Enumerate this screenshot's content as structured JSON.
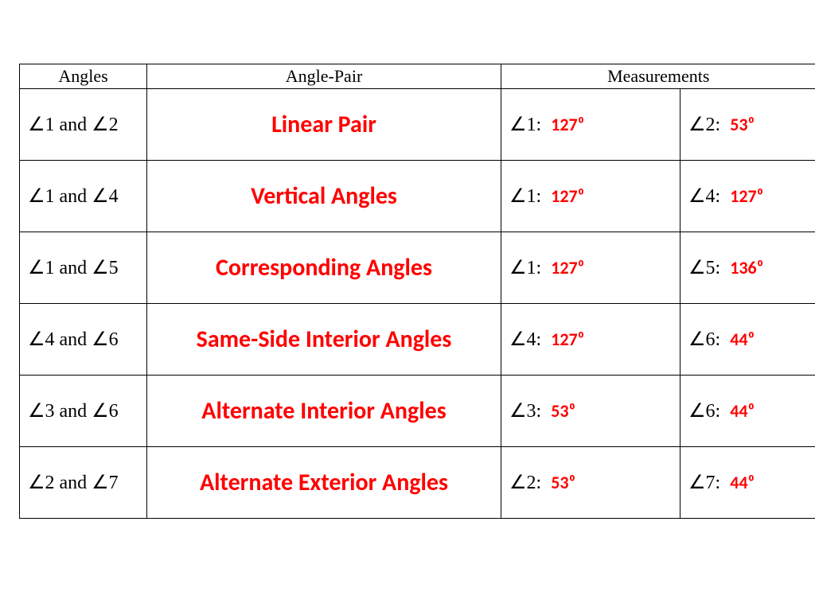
{
  "colors": {
    "answer": "#ff0000",
    "text": "#000000",
    "border": "#000000",
    "background": "#ffffff"
  },
  "fonts": {
    "body": "Times New Roman",
    "answers": "Calibri",
    "header_size": 22,
    "angles_size": 24,
    "pair_size": 30,
    "value_size": 22
  },
  "columns": {
    "angles": "Angles",
    "pair": "Angle-Pair",
    "measurements": "Measurements"
  },
  "rows": [
    {
      "angles": "∠1 and ∠2",
      "pair": "Linear Pair",
      "m1_label": "∠1:",
      "m1_val": "127⁰",
      "m2_label": "∠2:",
      "m2_val": "53⁰"
    },
    {
      "angles": "∠1 and ∠4",
      "pair": "Vertical Angles",
      "m1_label": "∠1:",
      "m1_val": "127⁰",
      "m2_label": "∠4:",
      "m2_val": "127⁰"
    },
    {
      "angles": "∠1 and ∠5",
      "pair": "Corresponding Angles",
      "m1_label": "∠1:",
      "m1_val": "127⁰",
      "m2_label": "∠5:",
      "m2_val": "136⁰"
    },
    {
      "angles": "∠4 and ∠6",
      "pair": "Same-Side Interior Angles",
      "m1_label": "∠4:",
      "m1_val": "127⁰",
      "m2_label": "∠6:",
      "m2_val": "44⁰"
    },
    {
      "angles": "∠3 and ∠6",
      "pair": "Alternate Interior Angles",
      "m1_label": "∠3:",
      "m1_val": "53⁰",
      "m2_label": "∠6:",
      "m2_val": "44⁰"
    },
    {
      "angles": "∠2 and ∠7",
      "pair": "Alternate Exterior Angles",
      "m1_label": "∠2:",
      "m1_val": "53⁰",
      "m2_label": "∠7:",
      "m2_val": "44⁰"
    }
  ]
}
